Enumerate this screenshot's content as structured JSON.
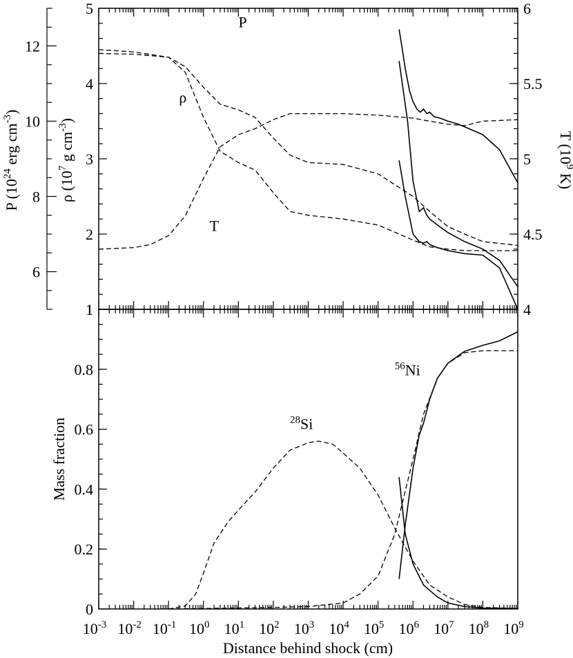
{
  "chart_data": [
    {
      "type": "line",
      "panel": "top",
      "xlabel": "Distance behind shock (cm)",
      "x_scale": "log",
      "xlim": [
        0.001,
        1000000000
      ],
      "axes": {
        "P": {
          "label_base": "P (10",
          "label_sup": "24",
          "label_mid": " erg cm",
          "label_sup2": "-3",
          "label_end": ")",
          "range": [
            5.0,
            13.0
          ],
          "ticks": [
            "6",
            "8",
            "10",
            "12"
          ]
        },
        "rho": {
          "label_base": "ρ (10",
          "label_sup": "7",
          "label_mid": " g cm",
          "label_sup2": "-3",
          "label_end": ")",
          "range": [
            1,
            5
          ],
          "ticks": [
            "1",
            "2",
            "3",
            "4",
            "5"
          ]
        },
        "T": {
          "label_base": "T (10",
          "label_sup": "9",
          "label_mid": " K)",
          "range": [
            4,
            6
          ],
          "ticks": [
            "4",
            "4.5",
            "5",
            "5.5",
            "6"
          ]
        }
      },
      "series": [
        {
          "name": "P",
          "axis": "P",
          "style": "dashed",
          "x": [
            0.001,
            0.01,
            0.1,
            0.3,
            1,
            3,
            10,
            30,
            100,
            300,
            1000,
            10000,
            100000,
            1000000,
            3000000,
            10000000,
            30000000,
            100000000,
            1000000000
          ],
          "y": [
            11.8,
            11.78,
            11.7,
            11.45,
            10.9,
            10.45,
            10.3,
            10.1,
            9.55,
            9.1,
            8.9,
            8.85,
            8.6,
            8.0,
            7.6,
            7.2,
            7.0,
            6.8,
            6.7
          ]
        },
        {
          "name": "ρ",
          "axis": "rho",
          "style": "dashed",
          "x": [
            0.001,
            0.01,
            0.1,
            0.3,
            1,
            3,
            10,
            30,
            100,
            300,
            1000,
            10000,
            100000,
            1000000,
            3000000,
            10000000,
            30000000,
            100000000,
            1000000000
          ],
          "y": [
            4.45,
            4.42,
            4.35,
            4.15,
            3.55,
            3.1,
            2.95,
            2.85,
            2.55,
            2.3,
            2.25,
            2.2,
            2.12,
            1.92,
            1.83,
            1.8,
            1.78,
            1.78,
            1.78
          ]
        },
        {
          "name": "T",
          "axis": "T",
          "style": "dashed",
          "x": [
            0.001,
            0.01,
            0.03,
            0.1,
            0.3,
            1,
            3,
            10,
            30,
            100,
            300,
            1000,
            10000,
            100000,
            1000000,
            3000000,
            10000000,
            30000000,
            100000000,
            1000000000
          ],
          "y": [
            4.4,
            4.41,
            4.43,
            4.49,
            4.62,
            4.87,
            5.08,
            5.16,
            5.2,
            5.26,
            5.3,
            5.3,
            5.3,
            5.29,
            5.27,
            5.25,
            5.23,
            5.22,
            5.25,
            5.26
          ]
        },
        {
          "name": "",
          "axis": "T",
          "style": "solid",
          "x": [
            400000,
            500000,
            600000,
            800000,
            1000000,
            1300000,
            1600000,
            2000000,
            2500000,
            3000000,
            4000000,
            6000000,
            10000000,
            20000000,
            40000000,
            100000000,
            300000000,
            1000000000
          ],
          "y": [
            5.86,
            5.72,
            5.6,
            5.45,
            5.38,
            5.33,
            5.31,
            5.33,
            5.3,
            5.31,
            5.28,
            5.27,
            5.25,
            5.23,
            5.2,
            5.16,
            5.06,
            4.84
          ]
        },
        {
          "name": "",
          "axis": "rho",
          "style": "solid",
          "x": [
            400000,
            600000,
            1000000,
            1500000,
            2000000,
            2500000,
            3000000,
            5000000,
            10000000,
            30000000,
            100000000,
            300000000,
            1000000000
          ],
          "y": [
            2.98,
            2.5,
            2.0,
            1.9,
            1.88,
            1.9,
            1.86,
            1.82,
            1.78,
            1.74,
            1.72,
            1.55,
            1.0
          ]
        },
        {
          "name": "",
          "axis": "rho",
          "style": "solid",
          "x": [
            400000,
            700000,
            1000000,
            1500000,
            2000000,
            2500000,
            3000000,
            5000000,
            10000000,
            30000000,
            100000000,
            300000000,
            1000000000
          ],
          "y": [
            4.3,
            3.5,
            2.7,
            2.3,
            2.35,
            2.25,
            2.2,
            2.12,
            2.02,
            1.9,
            1.8,
            1.65,
            1.3
          ]
        }
      ],
      "curve_labels": [
        {
          "text": "P",
          "x": 10,
          "y": 12.5,
          "axis": "P"
        },
        {
          "text": "ρ",
          "x": 0.2,
          "y": 3.75,
          "axis": "rho"
        },
        {
          "text": "T",
          "x": 1.5,
          "y": 4.52,
          "axis": "T"
        }
      ]
    },
    {
      "type": "line",
      "panel": "bottom",
      "xlabel": "Distance behind shock (cm)",
      "ylabel": "Mass fraction",
      "x_scale": "log",
      "xlim": [
        0.001,
        1000000000
      ],
      "ylim": [
        0,
        1
      ],
      "x_ticks": [
        {
          "base": "10",
          "exp": "-3"
        },
        {
          "base": "10",
          "exp": "-2"
        },
        {
          "base": "10",
          "exp": "-1"
        },
        {
          "base": "10",
          "exp": "0"
        },
        {
          "base": "10",
          "exp": "1"
        },
        {
          "base": "10",
          "exp": "2"
        },
        {
          "base": "10",
          "exp": "3"
        },
        {
          "base": "10",
          "exp": "4"
        },
        {
          "base": "10",
          "exp": "5"
        },
        {
          "base": "10",
          "exp": "6"
        },
        {
          "base": "10",
          "exp": "7"
        },
        {
          "base": "10",
          "exp": "8"
        },
        {
          "base": "10",
          "exp": "9"
        }
      ],
      "y_ticks": [
        "0",
        "0.2",
        "0.4",
        "0.6",
        "0.8",
        "1"
      ],
      "series": [
        {
          "name": "28Si",
          "style": "dashed",
          "x": [
            0.1,
            0.3,
            0.6,
            1,
            2,
            5,
            10,
            30,
            100,
            300,
            1000,
            2000,
            5000,
            10000,
            30000,
            100000,
            300000,
            1000000,
            3000000,
            10000000,
            30000000,
            100000000,
            1000000000
          ],
          "y": [
            0.0,
            0.01,
            0.05,
            0.12,
            0.22,
            0.29,
            0.33,
            0.39,
            0.47,
            0.53,
            0.555,
            0.56,
            0.55,
            0.52,
            0.47,
            0.38,
            0.27,
            0.16,
            0.08,
            0.04,
            0.015,
            0.005,
            0.002
          ]
        },
        {
          "name": "56Ni",
          "style": "dashed",
          "x": [
            0.1,
            100,
            1000,
            10000,
            30000,
            100000,
            300000,
            1000000,
            2000000,
            5000000,
            10000000,
            30000000,
            100000000,
            1000000000
          ],
          "y": [
            0.0,
            0.005,
            0.008,
            0.02,
            0.05,
            0.11,
            0.25,
            0.5,
            0.65,
            0.77,
            0.82,
            0.855,
            0.862,
            0.862
          ]
        },
        {
          "name": "",
          "style": "solid",
          "x": [
            400000,
            600000,
            1000000,
            2000000,
            5000000,
            10000000,
            30000000,
            100000000,
            300000000,
            1000000000
          ],
          "y": [
            0.44,
            0.25,
            0.15,
            0.08,
            0.04,
            0.02,
            0.008,
            0.003,
            0.002,
            0.001
          ]
        },
        {
          "name": "",
          "style": "solid",
          "x": [
            400000,
            600000,
            1000000,
            1500000,
            2000000,
            3000000,
            5000000,
            10000000,
            30000000,
            100000000,
            300000000,
            1000000000
          ],
          "y": [
            0.1,
            0.28,
            0.47,
            0.58,
            0.62,
            0.7,
            0.77,
            0.82,
            0.86,
            0.88,
            0.895,
            0.925
          ]
        }
      ],
      "curve_labels": [
        {
          "text": "Si",
          "sup": "28",
          "x": 300,
          "y": 0.6
        },
        {
          "text": "Ni",
          "sup": "56",
          "x": 300000,
          "y": 0.78
        }
      ]
    }
  ]
}
